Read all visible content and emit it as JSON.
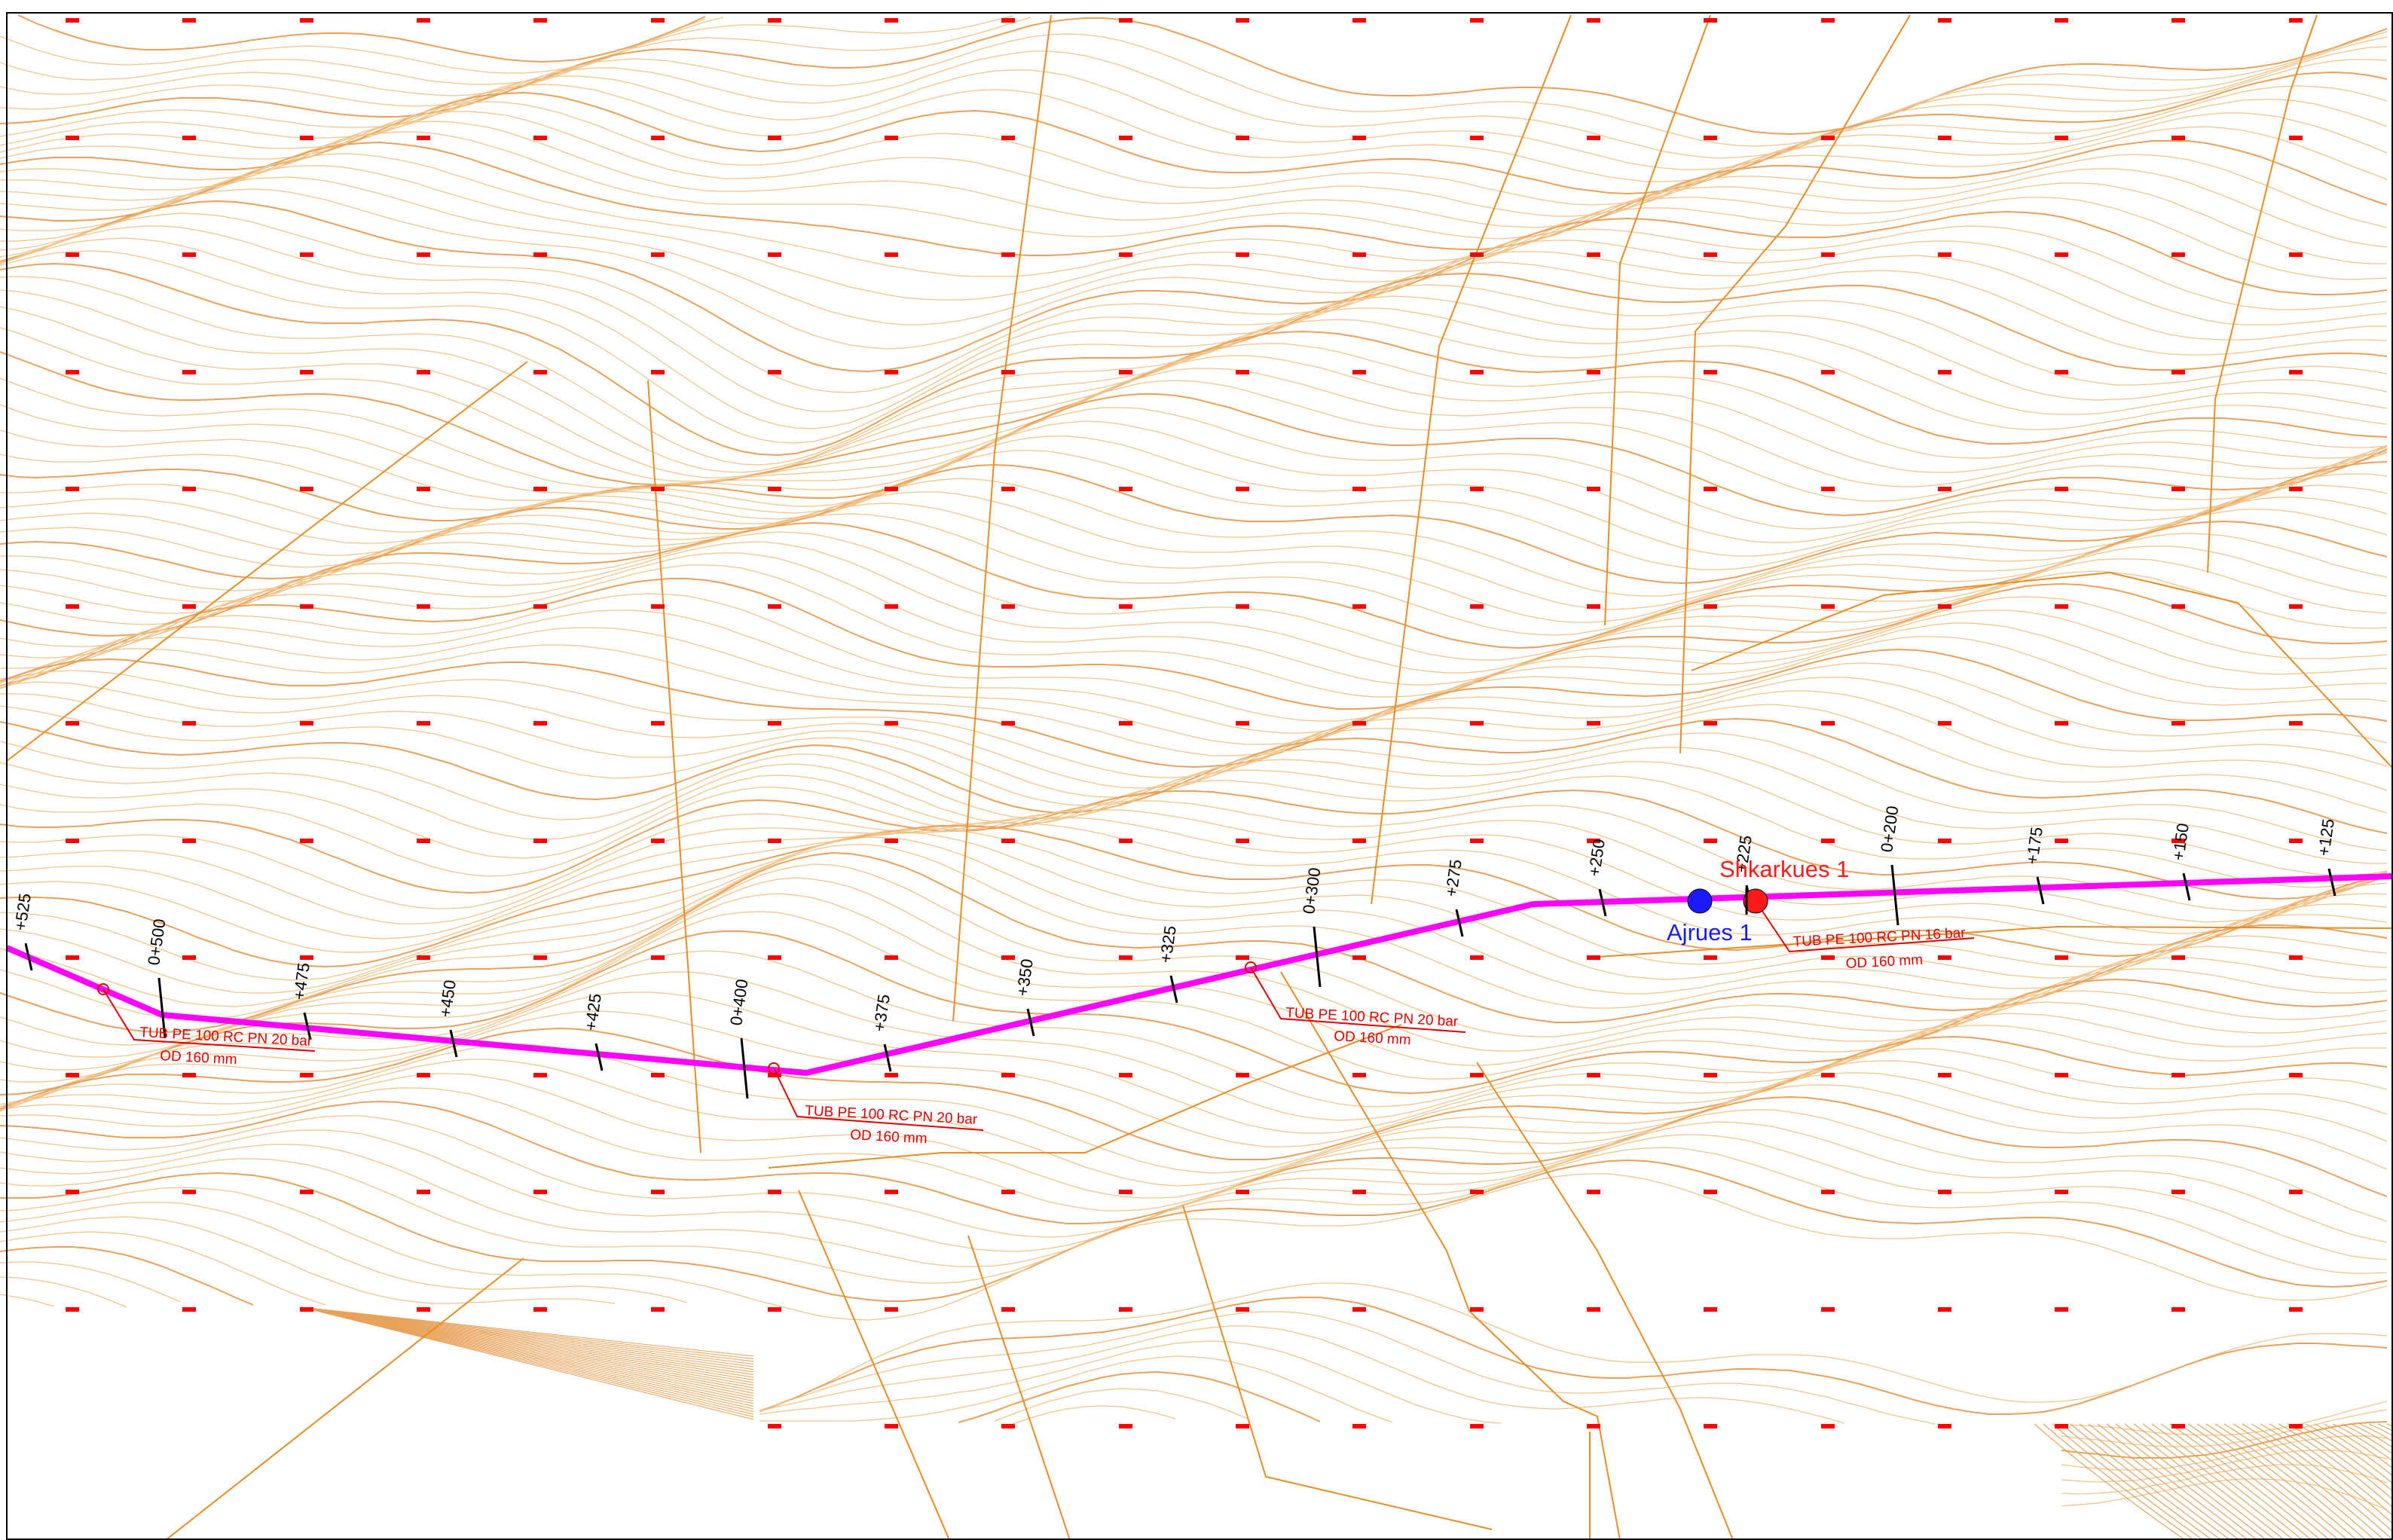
{
  "colors": {
    "contour": "#e8a25a",
    "contour_light": "#f0c48a",
    "ridge": "#e88c24",
    "pipeline": "#ff00ff",
    "grid_mark": "#ff0000",
    "annotation": "#e00000",
    "tick": "#000000",
    "valve_blue": "#1a1aff",
    "node_red": "#ff1a1a",
    "frame": "#000000",
    "background": "#ffffff"
  },
  "stations": [
    "+525",
    "0+500",
    "+475",
    "+450",
    "+425",
    "0+400",
    "+375",
    "+350",
    "+325",
    "0+300",
    "+275",
    "+250",
    "+225",
    "0+200",
    "+175",
    "+150",
    "+125"
  ],
  "pipe_labels": [
    {
      "line1": "TUB PE 100 RC PN 20 bar",
      "line2": "OD 160 mm"
    },
    {
      "line1": "TUB PE 100 RC PN 20 bar",
      "line2": "OD 160 mm"
    },
    {
      "line1": "TUB PE 100 RC PN 20 bar",
      "line2": "OD 160 mm"
    },
    {
      "line1": "TUB PE 100 RC PN 16 bar",
      "line2": "OD 160 mm"
    }
  ],
  "nodes": {
    "air_valve": {
      "label": "Ajrues 1",
      "icon": "blue-circle-valve-icon"
    },
    "drain_valve": {
      "label": "Shkarkues 1",
      "icon": "red-circle-valve-icon"
    }
  }
}
